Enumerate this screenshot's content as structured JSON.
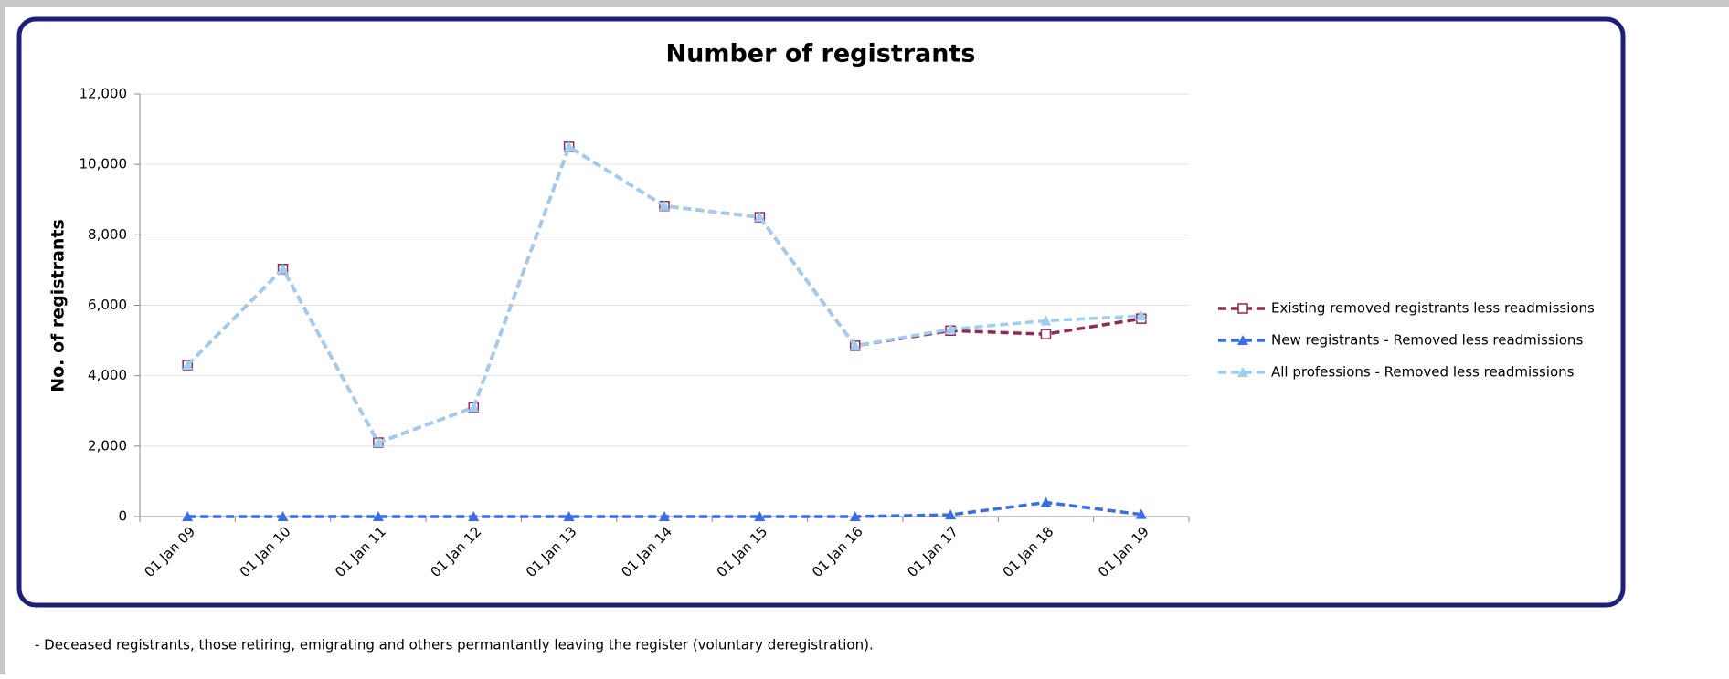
{
  "chart_data": {
    "type": "line",
    "title": "Number of registrants",
    "y_label": "No. of registrants",
    "categories": [
      "01 Jan 09",
      "01 Jan 10",
      "01 Jan 11",
      "01 Jan 12",
      "01 Jan 13",
      "01 Jan 14",
      "01 Jan 15",
      "01 Jan 16",
      "01 Jan 17",
      "01 Jan 18",
      "01 Jan 19"
    ],
    "series": [
      {
        "name": "Existing removed registrants less readmissions",
        "color": "#8e2a55",
        "marker": "square",
        "values": [
          4300,
          7030,
          2100,
          3100,
          10500,
          8820,
          8500,
          4850,
          5280,
          5180,
          5620
        ]
      },
      {
        "name": "New registrants - Removed less readmissions",
        "color": "#3a6ee8",
        "marker": "triangle",
        "values": [
          0,
          0,
          0,
          0,
          0,
          0,
          0,
          0,
          50,
          400,
          60
        ]
      },
      {
        "name": "All professions - Removed less readmissions",
        "color": "#9fcdf2",
        "marker": "triangle",
        "values": [
          4300,
          7030,
          2100,
          3100,
          10500,
          8820,
          8500,
          4850,
          5320,
          5560,
          5700
        ]
      }
    ],
    "ylim": [
      0,
      12000
    ],
    "yticks": [
      0,
      {
        "value": 2000,
        "label": "2,000"
      },
      {
        "value": 4000,
        "label": "4,000"
      },
      {
        "value": 6000,
        "label": "6,000"
      },
      {
        "value": 8000,
        "label": "8,000"
      },
      {
        "value": 10000,
        "label": "10,000"
      },
      {
        "value": 12000,
        "label": "12,000"
      }
    ],
    "grid": true,
    "legend": "right"
  },
  "footer_note": "-   Deceased registrants, those retiring, emigrating and others permantantly leaving the register (voluntary deregistration)."
}
